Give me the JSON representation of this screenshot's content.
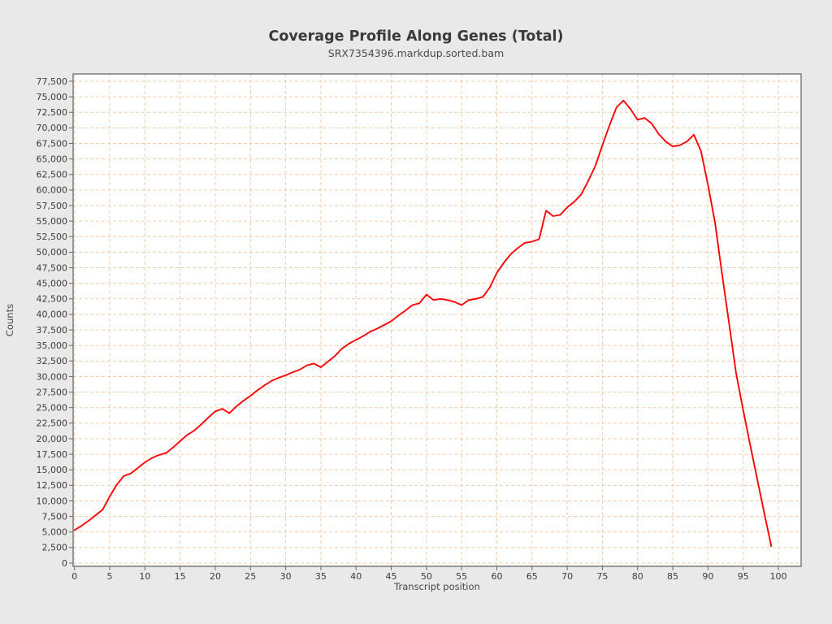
{
  "chart_data": {
    "type": "line",
    "title": "Coverage Profile Along Genes (Total)",
    "subtitle": "SRX7354396.markdup.sorted.bam",
    "xlabel": "Transcript position",
    "ylabel": "Counts",
    "xlim": [
      0,
      103
    ],
    "ylim": [
      0,
      78300
    ],
    "grid": {
      "visible": true,
      "style": "dashed",
      "x_interval": 5,
      "y_interval": 2500
    },
    "legend_position": "none",
    "x_ticks": [
      "0",
      "5",
      "10",
      "15",
      "20",
      "25",
      "30",
      "35",
      "40",
      "45",
      "50",
      "55",
      "60",
      "65",
      "70",
      "75",
      "80",
      "85",
      "90",
      "95",
      "100"
    ],
    "y_ticks": [
      "0",
      "2,500",
      "5,000",
      "7,500",
      "10,000",
      "12,500",
      "15,000",
      "17,500",
      "20,000",
      "22,500",
      "25,000",
      "27,500",
      "30,000",
      "32,500",
      "35,000",
      "37,500",
      "40,000",
      "42,500",
      "45,000",
      "47,500",
      "50,000",
      "52,500",
      "55,000",
      "57,500",
      "60,000",
      "62,500",
      "65,000",
      "67,500",
      "70,000",
      "72,500",
      "75,000",
      "77,500"
    ],
    "series": [
      {
        "name": "SRX7354396.markdup.sorted.bam",
        "color": "#fe0303",
        "x_start": 0,
        "x_step": 1,
        "values": [
          5300,
          6000,
          6800,
          7700,
          8600,
          10700,
          12600,
          14000,
          14400,
          15300,
          16200,
          16900,
          17400,
          17700,
          18600,
          19600,
          20600,
          21300,
          22300,
          23400,
          24400,
          24800,
          24100,
          25200,
          26100,
          26900,
          27800,
          28600,
          29300,
          29800,
          30200,
          30700,
          31100,
          31800,
          32100,
          31500,
          32400,
          33300,
          34500,
          35300,
          35900,
          36500,
          37200,
          37700,
          38300,
          38900,
          39800,
          40600,
          41500,
          41800,
          43200,
          42300,
          42500,
          42300,
          42000,
          41500,
          42300,
          42500,
          42800,
          44300,
          46700,
          48300,
          49700,
          50700,
          51500,
          51700,
          52100,
          56700,
          55800,
          56000,
          57200,
          58100,
          59300,
          61500,
          63900,
          67200,
          70400,
          73300,
          74400,
          73000,
          71300,
          71600,
          70700,
          69000,
          67800,
          67000,
          67200,
          67800,
          68900,
          66300,
          60800,
          54800,
          46500,
          38500,
          30500,
          24600,
          19000,
          13500,
          8000,
          2700
        ]
      }
    ],
    "colors": {
      "page_background": "#e9e9e9",
      "plot_background": "#ffffff",
      "gridline": "#f5cdab",
      "plot_border": "#7a7a7a",
      "tick_mark": "#666666",
      "title_text": "#3a3a3a",
      "subtitle_text": "#4a4a4a",
      "tick_text": "#3c3c3c",
      "axis_label_text": "#464646",
      "series_line": "#fe0303"
    }
  }
}
